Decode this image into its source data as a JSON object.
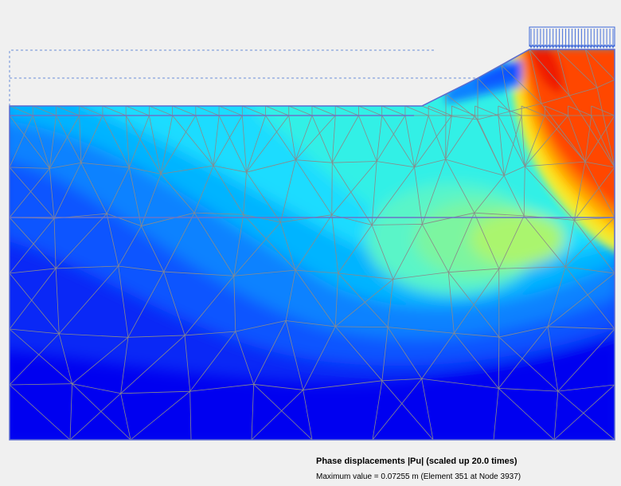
{
  "caption": {
    "title": "Phase displacements |Pu| (scaled up 20.0 times)",
    "max_label": "Maximum value = 0.07255 m (Element 351 at Node 3937)"
  },
  "legend_colors": {
    "c0": "#0000f0",
    "c1": "#0a28f6",
    "c2": "#0f55ff",
    "c3": "#0a82ff",
    "c4": "#00b4ff",
    "c5": "#1edcff",
    "c6": "#32f0e6",
    "c7": "#5af5c8",
    "c8": "#7cf5a0",
    "c9": "#aaf56e",
    "c10": "#e6f03c",
    "c11": "#ffdc14",
    "c12": "#ffaa00",
    "c13": "#ff7800",
    "c14": "#ff4600",
    "c15": "#f01e00"
  },
  "icons": {
    "load": "distributed-load-arrows-icon"
  }
}
